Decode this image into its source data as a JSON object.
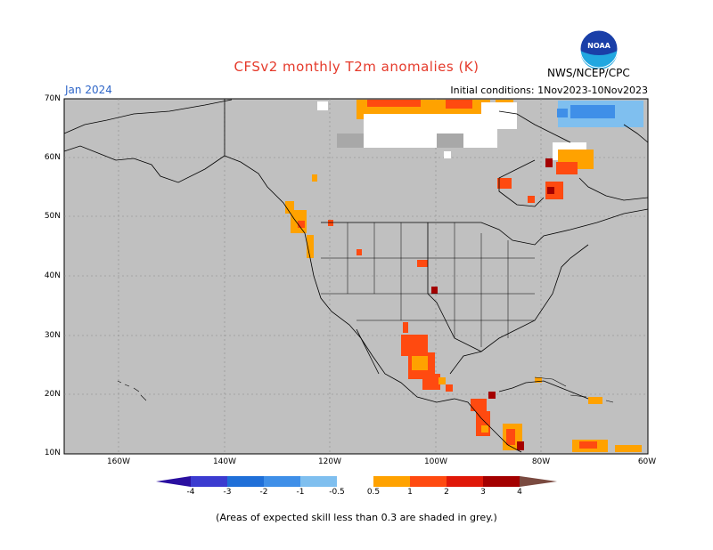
{
  "header": {
    "title": "CFSv2 monthly T2m anomalies (K)",
    "month": "Jan 2024",
    "initial_conditions": "Initial conditions: 1Nov2023-10Nov2023",
    "agency": "NWS/NCEP/CPC",
    "logo_text": "NOAA"
  },
  "map": {
    "lat_labels": [
      "70N",
      "60N",
      "50N",
      "40N",
      "30N",
      "20N",
      "10N"
    ],
    "lon_labels": [
      "160W",
      "140W",
      "120W",
      "100W",
      "80W",
      "60W"
    ],
    "background": "#c0c0c0"
  },
  "colorbar": {
    "labels": [
      "-4",
      "-3",
      "-2",
      "-1",
      "-0.5",
      "0.5",
      "1",
      "2",
      "3",
      "4"
    ],
    "colors": [
      "#2a0fa0",
      "#3b3bd0",
      "#1f6fd8",
      "#3f8fe8",
      "#7fbfef",
      "#ffffff",
      "#ffa200",
      "#ff4a10",
      "#e01808",
      "#a40000",
      "#c8a090",
      "#7a4a40"
    ]
  },
  "footnote": "(Areas of expected skill less than 0.3 are shaded in grey.)"
}
